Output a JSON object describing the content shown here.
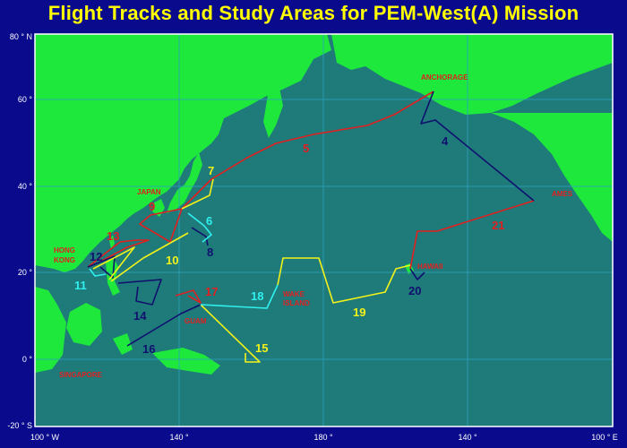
{
  "title": "Flight Tracks and Study Areas for PEM-West(A) Mission",
  "colors": {
    "ocean": "#1f7a7a",
    "land": "#1fe83c",
    "grid": "#2aa3c0",
    "frame": "#ffffff",
    "track_red": "#e02020",
    "track_navy": "#10106e",
    "track_yellow": "#f2f21a",
    "track_cyan": "#30f0f0",
    "label_red": "#e02020"
  },
  "lat_labels": [
    "80 ° N",
    "60 °",
    "40 °",
    "20 °",
    "0 °",
    "-20 ° S"
  ],
  "lon_labels": [
    "100 ° W",
    "140 °",
    "180 °",
    "140 °",
    "100 ° E"
  ],
  "places": {
    "anchorage": "ANCHORAGE",
    "japan": "JAPAN",
    "ames": "AMES",
    "hong": "HONG",
    "kong": "KONG",
    "hawaii": "HAWAII",
    "wake": "WAKE",
    "island": "ISLAND",
    "guam": "GUAM",
    "singapore": "SINGAPORE"
  },
  "flights": [
    "4",
    "5",
    "6",
    "7",
    "8",
    "9",
    "10",
    "11",
    "12",
    "13",
    "14",
    "15",
    "16",
    "17",
    "18",
    "19",
    "20",
    "21"
  ]
}
